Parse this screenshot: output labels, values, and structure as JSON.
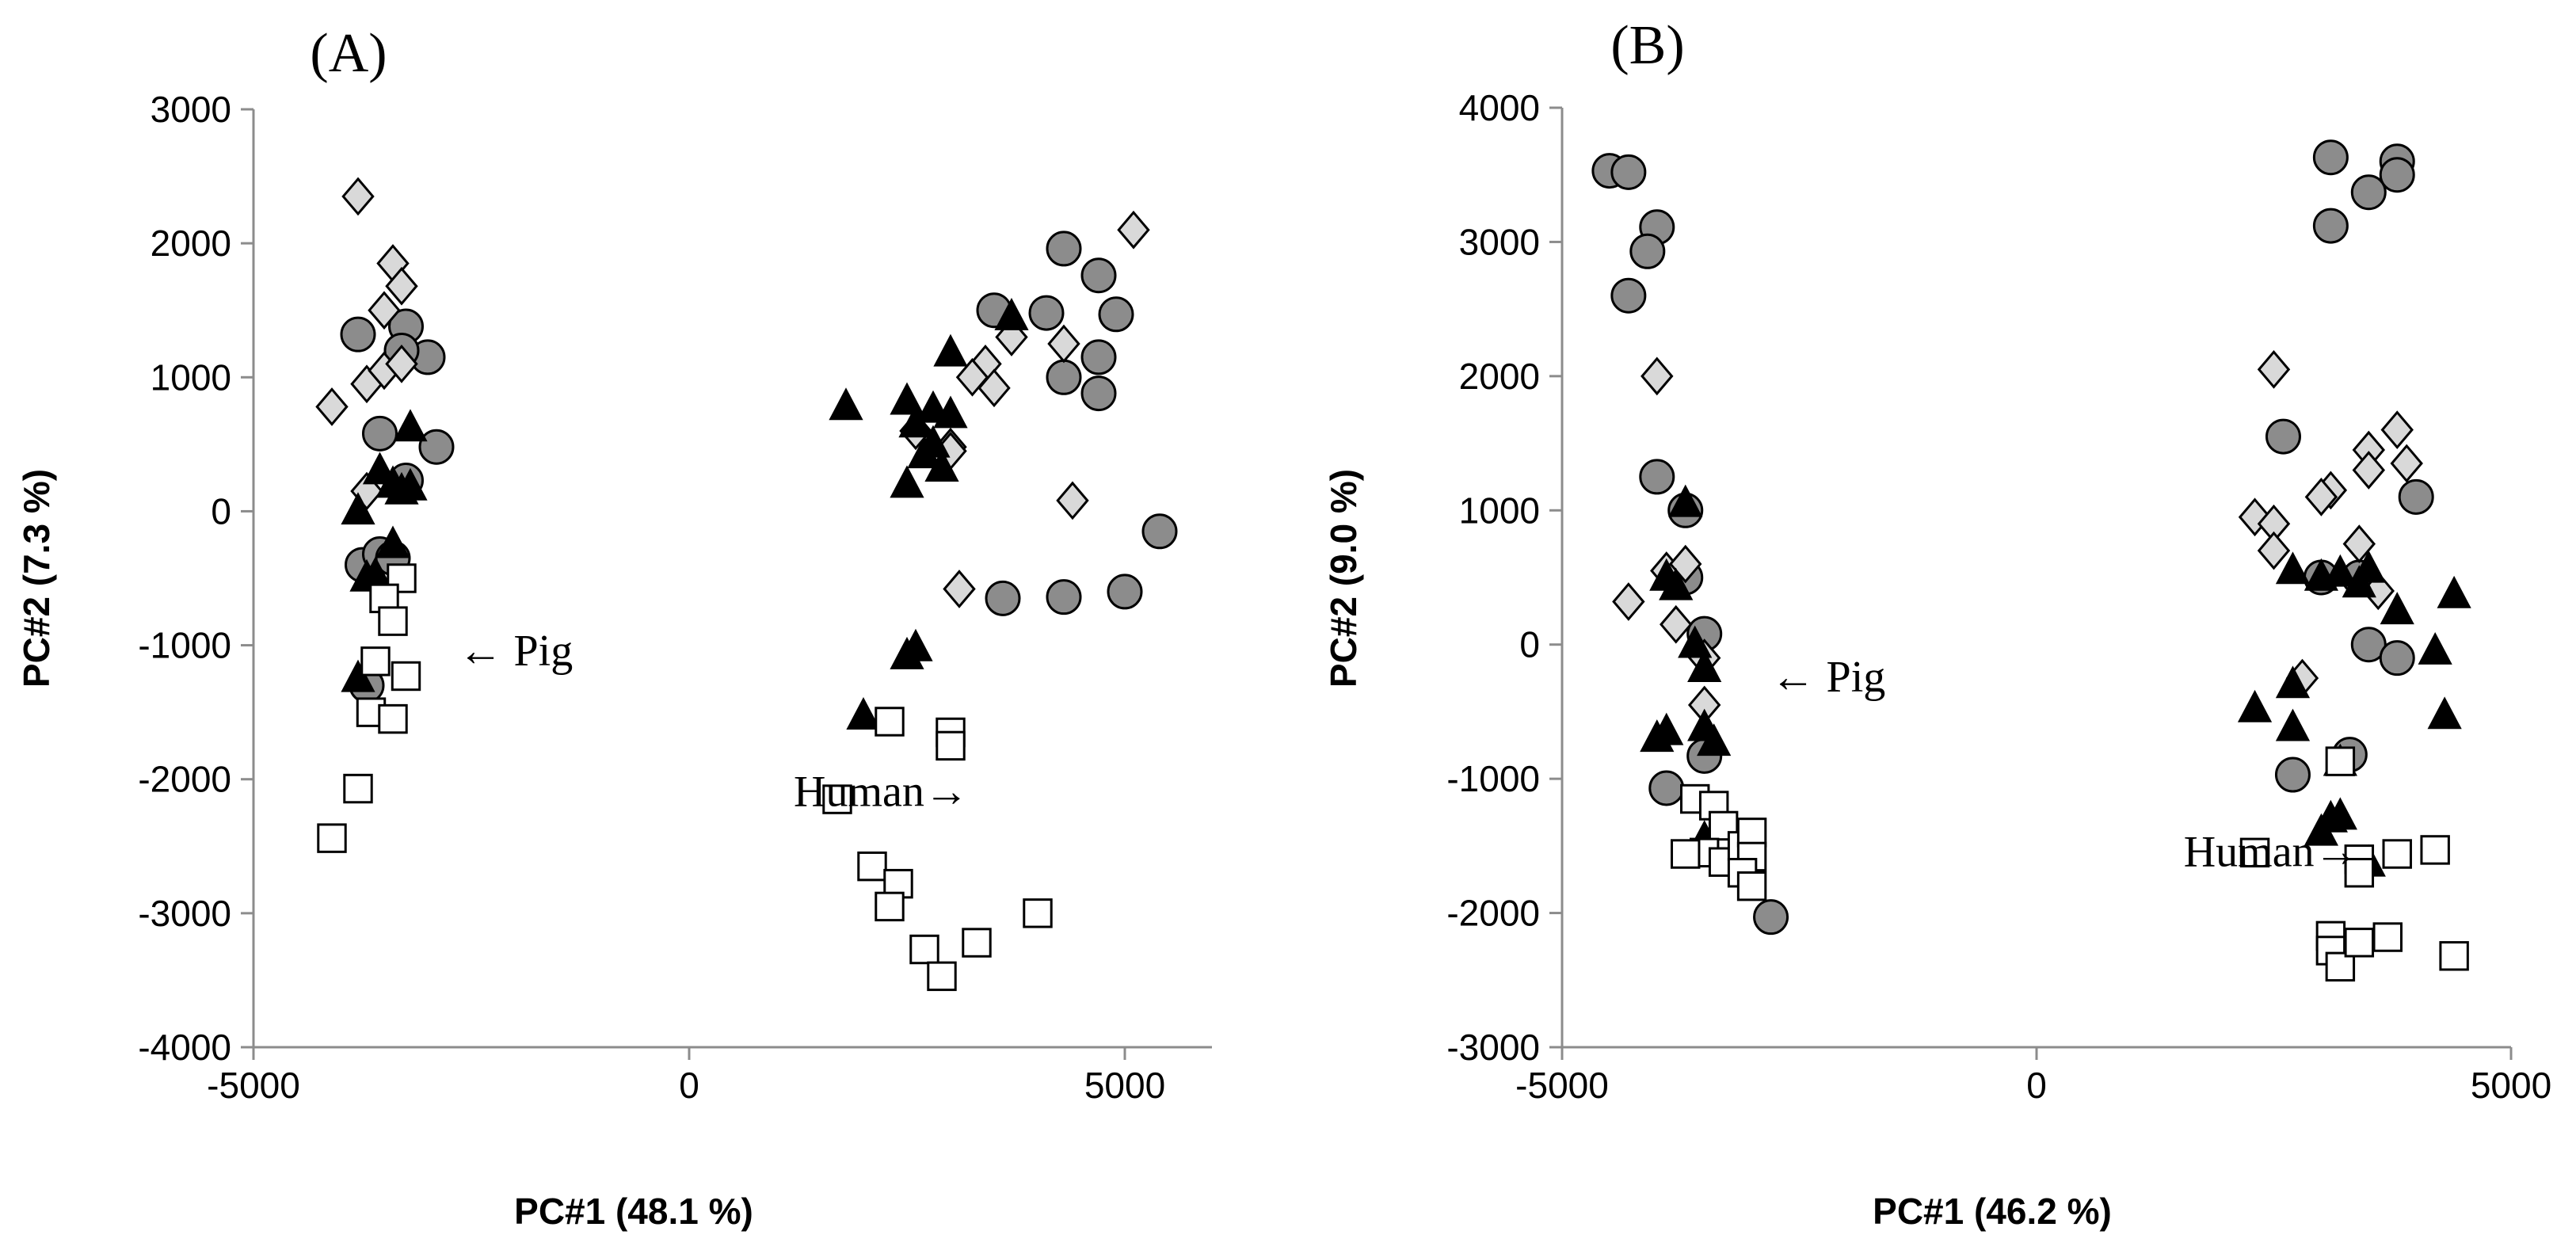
{
  "colors": {
    "circle_fill": "#8c8c8c",
    "diamond_fill": "#d9d9d9",
    "triangle_fill": "#000000",
    "square_fill": "#ffffff",
    "stroke": "#000000",
    "axis": "#8c8c8c"
  },
  "chart_data": [
    {
      "type": "scatter",
      "panel_label": "(A)",
      "title": "",
      "xlabel": "PC#1 (48.1 %)",
      "ylabel": "PC#2 (7.3 %)",
      "xlim": [
        -5000,
        6000
      ],
      "ylim": [
        -4000,
        3000
      ],
      "x_ticks": [
        "-5000",
        "0",
        "5000"
      ],
      "x_tick_values": [
        -5000,
        0,
        5000
      ],
      "y_ticks": [
        "3000",
        "2000",
        "1000",
        "0",
        "-1000",
        "-2000",
        "-3000",
        "-4000"
      ],
      "y_tick_values": [
        3000,
        2000,
        1000,
        0,
        -1000,
        -2000,
        -3000,
        -4000
      ],
      "annotations": [
        {
          "id": "pig",
          "text": "← Pig",
          "x": -2650,
          "y": -1150
        },
        {
          "id": "human",
          "text": "Human→",
          "x": 1200,
          "y": -2200
        }
      ],
      "series": [
        {
          "name": "Circle",
          "marker": "circle",
          "points": [
            [
              -3800,
              1320
            ],
            [
              -3250,
              1380
            ],
            [
              -3000,
              1150
            ],
            [
              -3300,
              1200
            ],
            [
              -3550,
              580
            ],
            [
              -2900,
              480
            ],
            [
              -3250,
              230
            ],
            [
              -3750,
              -400
            ],
            [
              -3550,
              -320
            ],
            [
              -3400,
              -350
            ],
            [
              -3700,
              -1300
            ],
            [
              3500,
              1500
            ],
            [
              4100,
              1480
            ],
            [
              4300,
              1960
            ],
            [
              4700,
              1760
            ],
            [
              4900,
              1470
            ],
            [
              4300,
              1000
            ],
            [
              4700,
              1150
            ],
            [
              4700,
              880
            ],
            [
              3600,
              -650
            ],
            [
              4300,
              -640
            ],
            [
              5000,
              -600
            ],
            [
              5400,
              -150
            ]
          ]
        },
        {
          "name": "Diamond",
          "marker": "diamond",
          "points": [
            [
              -3800,
              2350
            ],
            [
              -3400,
              1850
            ],
            [
              -3300,
              1680
            ],
            [
              -4100,
              780
            ],
            [
              -3700,
              950
            ],
            [
              -3500,
              1050
            ],
            [
              -3300,
              1100
            ],
            [
              -3500,
              1500
            ],
            [
              -3700,
              150
            ],
            [
              3400,
              1100
            ],
            [
              3500,
              920
            ],
            [
              3250,
              1000
            ],
            [
              3700,
              1300
            ],
            [
              4300,
              1250
            ],
            [
              5100,
              2100
            ],
            [
              3000,
              480
            ],
            [
              3000,
              450
            ],
            [
              4400,
              80
            ],
            [
              3100,
              -580
            ],
            [
              2600,
              600
            ]
          ]
        },
        {
          "name": "Triangle",
          "marker": "triangle",
          "points": [
            [
              -3200,
              620
            ],
            [
              -3550,
              300
            ],
            [
              -3400,
              200
            ],
            [
              -3300,
              150
            ],
            [
              -3200,
              180
            ],
            [
              -3800,
              0
            ],
            [
              -3400,
              -250
            ],
            [
              -3700,
              -500
            ],
            [
              -3600,
              -480
            ],
            [
              -3800,
              -1250
            ],
            [
              1800,
              780
            ],
            [
              2500,
              820
            ],
            [
              2800,
              760
            ],
            [
              3000,
              720
            ],
            [
              3000,
              1180
            ],
            [
              3700,
              1450
            ],
            [
              2800,
              500
            ],
            [
              2700,
              420
            ],
            [
              2900,
              320
            ],
            [
              2500,
              200
            ],
            [
              2500,
              -1080
            ],
            [
              2600,
              -1020
            ],
            [
              2000,
              -1530
            ],
            [
              2600,
              650
            ]
          ]
        },
        {
          "name": "Square",
          "marker": "square",
          "points": [
            [
              -3300,
              -500
            ],
            [
              -3500,
              -650
            ],
            [
              -3400,
              -820
            ],
            [
              -3600,
              -1120
            ],
            [
              -3250,
              -1230
            ],
            [
              -3650,
              -1500
            ],
            [
              -3400,
              -1550
            ],
            [
              -3800,
              -2070
            ],
            [
              -4100,
              -2440
            ],
            [
              2300,
              -1570
            ],
            [
              3000,
              -1650
            ],
            [
              3000,
              -1750
            ],
            [
              1700,
              -2150
            ],
            [
              2100,
              -2650
            ],
            [
              2400,
              -2780
            ],
            [
              2300,
              -2950
            ],
            [
              2700,
              -3270
            ],
            [
              2900,
              -3470
            ],
            [
              3300,
              -3220
            ],
            [
              4000,
              -3000
            ]
          ]
        }
      ]
    },
    {
      "type": "scatter",
      "panel_label": "(B)",
      "title": "",
      "xlabel": "PC#1 (46.2 %)",
      "ylabel": "PC#2 (9.0 %)",
      "xlim": [
        -5000,
        5000
      ],
      "ylim": [
        -3000,
        4000
      ],
      "x_ticks": [
        "-5000",
        "0",
        "5000"
      ],
      "x_tick_values": [
        -5000,
        0,
        5000
      ],
      "y_ticks": [
        "4000",
        "3000",
        "2000",
        "1000",
        "0",
        "-1000",
        "-2000",
        "-3000"
      ],
      "y_tick_values": [
        4000,
        3000,
        2000,
        1000,
        0,
        -1000,
        -2000,
        -3000
      ],
      "annotations": [
        {
          "id": "pig",
          "text": "← Pig",
          "x": -2800,
          "y": -350
        },
        {
          "id": "human",
          "text": "Human→",
          "x": 1550,
          "y": -1650
        }
      ],
      "series": [
        {
          "name": "Circle",
          "marker": "circle",
          "points": [
            [
              -4500,
              3530
            ],
            [
              -4300,
              3520
            ],
            [
              -4000,
              3110
            ],
            [
              -4100,
              2930
            ],
            [
              -4300,
              2600
            ],
            [
              -4000,
              1250
            ],
            [
              -3700,
              1000
            ],
            [
              -3700,
              500
            ],
            [
              -3500,
              80
            ],
            [
              -3900,
              -1070
            ],
            [
              -3500,
              -830
            ],
            [
              -2800,
              -2030
            ],
            [
              3100,
              3630
            ],
            [
              3800,
              3600
            ],
            [
              3800,
              3500
            ],
            [
              3500,
              3370
            ],
            [
              3100,
              3120
            ],
            [
              2600,
              1550
            ],
            [
              3400,
              500
            ],
            [
              3000,
              500
            ],
            [
              3500,
              0
            ],
            [
              3800,
              -100
            ],
            [
              3300,
              -820
            ],
            [
              2700,
              -970
            ],
            [
              4000,
              1100
            ]
          ]
        },
        {
          "name": "Diamond",
          "marker": "diamond",
          "points": [
            [
              -4000,
              2000
            ],
            [
              -3900,
              550
            ],
            [
              -3700,
              600
            ],
            [
              -3800,
              150
            ],
            [
              -4300,
              320
            ],
            [
              -3500,
              -100
            ],
            [
              -3500,
              -450
            ],
            [
              2500,
              2050
            ],
            [
              3100,
              1150
            ],
            [
              3000,
              1100
            ],
            [
              3500,
              1450
            ],
            [
              3800,
              1600
            ],
            [
              3900,
              1350
            ],
            [
              3500,
              1300
            ],
            [
              2300,
              950
            ],
            [
              2500,
              900
            ],
            [
              2500,
              700
            ],
            [
              3400,
              750
            ],
            [
              3600,
              400
            ],
            [
              2800,
              -250
            ]
          ]
        },
        {
          "name": "Triangle",
          "marker": "triangle",
          "points": [
            [
              -3700,
              1050
            ],
            [
              -3900,
              500
            ],
            [
              -3800,
              430
            ],
            [
              -3600,
              0
            ],
            [
              -3500,
              -180
            ],
            [
              -4000,
              -700
            ],
            [
              -3900,
              -650
            ],
            [
              -3500,
              -620
            ],
            [
              -3400,
              -730
            ],
            [
              -3500,
              -1450
            ],
            [
              2700,
              550
            ],
            [
              3000,
              500
            ],
            [
              3200,
              530
            ],
            [
              3500,
              560
            ],
            [
              3400,
              450
            ],
            [
              3800,
              250
            ],
            [
              4200,
              -50
            ],
            [
              4400,
              370
            ],
            [
              2300,
              -480
            ],
            [
              2700,
              -620
            ],
            [
              2700,
              -300
            ],
            [
              3200,
              -880
            ],
            [
              3000,
              -1400
            ],
            [
              3100,
              -1300
            ],
            [
              3200,
              -1280
            ],
            [
              3500,
              -1630
            ],
            [
              4300,
              -530
            ]
          ]
        },
        {
          "name": "Square",
          "marker": "square",
          "points": [
            [
              -3600,
              -1150
            ],
            [
              -3400,
              -1200
            ],
            [
              -3300,
              -1350
            ],
            [
              -3500,
              -1550
            ],
            [
              -3700,
              -1560
            ],
            [
              -3300,
              -1620
            ],
            [
              -3100,
              -1500
            ],
            [
              -3000,
              -1400
            ],
            [
              -3000,
              -1580
            ],
            [
              -3100,
              -1700
            ],
            [
              -3000,
              -1800
            ],
            [
              3200,
              -870
            ],
            [
              2300,
              -1550
            ],
            [
              3400,
              -1600
            ],
            [
              3400,
              -1700
            ],
            [
              3800,
              -1560
            ],
            [
              4200,
              -1530
            ],
            [
              3100,
              -2170
            ],
            [
              3100,
              -2280
            ],
            [
              3200,
              -2400
            ],
            [
              3400,
              -2220
            ],
            [
              3700,
              -2180
            ],
            [
              4400,
              -2320
            ]
          ]
        }
      ]
    }
  ]
}
